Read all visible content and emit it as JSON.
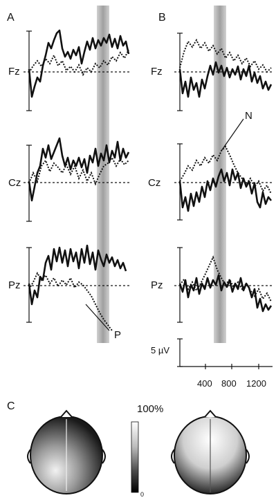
{
  "panels": {
    "a": {
      "letter": "A",
      "annotation": "P"
    },
    "b": {
      "letter": "B",
      "annotation": "N"
    },
    "c": {
      "letter": "C"
    }
  },
  "electrodes": [
    "Fz",
    "Cz",
    "Pz"
  ],
  "scale_bar": {
    "label": "5 µV"
  },
  "time_axis": {
    "ticks": [
      "400",
      "800",
      "1200"
    ]
  },
  "colorbar": {
    "max_label": "100%",
    "min_label": "0"
  },
  "colors": {
    "ink": "#111111",
    "shade": "#9a9a9a",
    "background": "#ffffff"
  }
}
